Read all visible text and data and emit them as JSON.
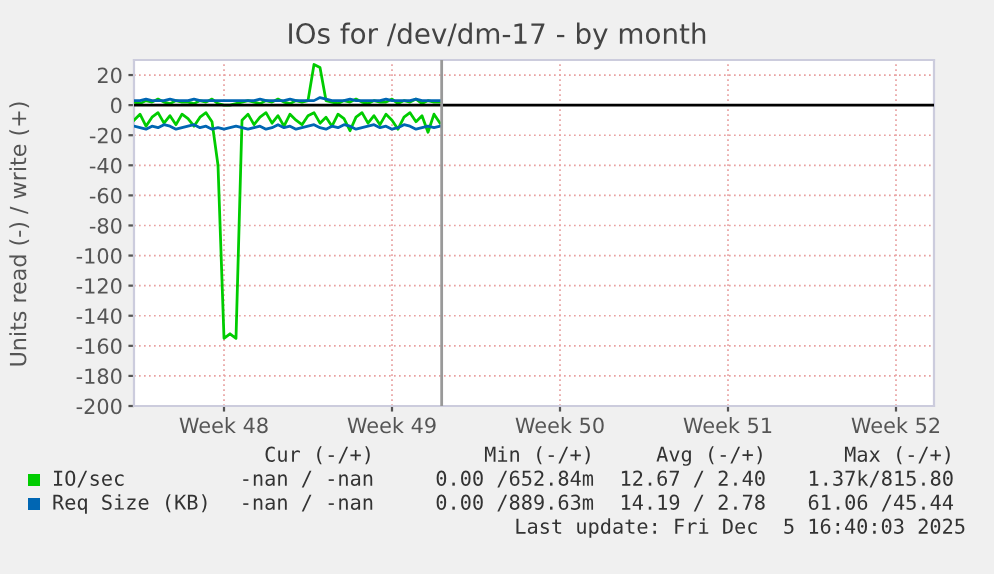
{
  "chart_data": {
    "type": "line",
    "title": "IOs for /dev/dm-17 - by month",
    "ylabel": "Units read (-) / write (+)",
    "x": [
      "2025-11-22T21:00",
      "2025-11-23T03:00",
      "2025-11-23T09:00",
      "2025-11-23T15:00",
      "2025-11-23T21:00",
      "2025-11-24T03:00",
      "2025-11-24T09:00",
      "2025-11-24T15:00",
      "2025-11-24T21:00",
      "2025-11-25T03:00",
      "2025-11-25T09:00",
      "2025-11-25T15:00",
      "2025-11-25T21:00",
      "2025-11-26T03:00",
      "2025-11-26T09:00",
      "2025-11-26T15:00",
      "2025-11-26T21:00",
      "2025-11-27T03:00",
      "2025-11-27T09:00",
      "2025-11-27T15:00",
      "2025-11-27T21:00",
      "2025-11-28T03:00",
      "2025-11-28T09:00",
      "2025-11-28T15:00",
      "2025-11-28T21:00",
      "2025-11-29T03:00",
      "2025-11-29T09:00",
      "2025-11-29T15:00",
      "2025-11-29T21:00",
      "2025-11-30T03:00",
      "2025-11-30T09:00",
      "2025-11-30T15:00",
      "2025-11-30T21:00",
      "2025-12-01T03:00",
      "2025-12-01T09:00",
      "2025-12-01T15:00",
      "2025-12-01T21:00",
      "2025-12-02T03:00",
      "2025-12-02T09:00",
      "2025-12-02T15:00",
      "2025-12-02T21:00",
      "2025-12-03T03:00",
      "2025-12-03T09:00",
      "2025-12-03T15:00",
      "2025-12-03T21:00",
      "2025-12-04T03:00",
      "2025-12-04T09:00",
      "2025-12-04T15:00",
      "2025-12-04T21:00",
      "2025-12-05T03:00",
      "2025-12-05T09:00",
      "2025-12-05T15:00"
    ],
    "series": [
      {
        "name": "IO/sec",
        "color": "#00cc00",
        "values": [
          -10,
          -6,
          -14,
          -8,
          -5,
          -12,
          -7,
          -13,
          -6,
          -9,
          -14,
          -8,
          -5,
          -11,
          -40,
          -155,
          -152,
          -155,
          -10,
          -6,
          -13,
          -8,
          -5,
          -12,
          -7,
          -14,
          -6,
          -10,
          -13,
          -7,
          -5,
          -12,
          -8,
          -14,
          -6,
          -9,
          -17,
          -8,
          -5,
          -12,
          -7,
          -13,
          -6,
          -10,
          -16,
          -8,
          -5,
          -11,
          -7,
          -18,
          -6,
          -12
        ]
      },
      {
        "color": "#00cc00",
        "values": [
          2,
          1,
          3,
          2,
          4,
          2,
          1,
          3,
          2,
          2,
          1,
          3,
          2,
          4,
          1,
          0,
          0,
          1,
          2,
          3,
          2,
          1,
          3,
          2,
          4,
          2,
          1,
          3,
          2,
          3,
          27,
          25,
          3,
          2,
          1,
          3,
          2,
          4,
          2,
          1,
          3,
          2,
          2,
          4,
          1,
          3,
          2,
          4,
          1,
          3,
          2,
          2
        ]
      },
      {
        "name": "Req Size (KB)",
        "color": "#0066b3",
        "values": [
          -14,
          -15,
          -16,
          -14,
          -15,
          -13,
          -14,
          -16,
          -15,
          -14,
          -13,
          -15,
          -14,
          -16,
          -15,
          -16,
          -15,
          -14,
          -15,
          -16,
          -15,
          -14,
          -16,
          -15,
          -13,
          -15,
          -14,
          -16,
          -15,
          -14,
          -13,
          -15,
          -16,
          -14,
          -15,
          -13,
          -14,
          -16,
          -15,
          -14,
          -13,
          -15,
          -14,
          -16,
          -15,
          -13,
          -14,
          -16,
          -15,
          -14,
          -15,
          -14
        ]
      },
      {
        "color": "#0066b3",
        "values": [
          3,
          3,
          4,
          3,
          3,
          3,
          4,
          3,
          3,
          3,
          4,
          3,
          3,
          3,
          3,
          3,
          3,
          3,
          3,
          3,
          3,
          4,
          3,
          3,
          3,
          3,
          4,
          3,
          3,
          3,
          3,
          5,
          4,
          3,
          3,
          3,
          4,
          3,
          3,
          3,
          3,
          3,
          4,
          3,
          3,
          3,
          3,
          4,
          3,
          3,
          3,
          3
        ]
      }
    ],
    "xlim": [
      "2025-11-22T21:00",
      "2025-12-26T05:00"
    ],
    "xticks": [
      {
        "value": "2025-11-26T15:00",
        "label": "Week 48"
      },
      {
        "value": "2025-12-03T15:00",
        "label": "Week 49"
      },
      {
        "value": "2025-12-10T15:00",
        "label": "Week 50"
      },
      {
        "value": "2025-12-17T15:00",
        "label": "Week 51"
      },
      {
        "value": "2025-12-24T15:00",
        "label": "Week 52"
      }
    ],
    "ylim": [
      -200,
      30
    ],
    "yticks": [
      -200,
      -180,
      -160,
      -140,
      -120,
      -100,
      -80,
      -60,
      -40,
      -20,
      0,
      20
    ],
    "ref_lines": [
      {
        "axis": "y",
        "value": 0,
        "color": "#000000"
      },
      {
        "axis": "x",
        "value": "2025-12-05T16:40",
        "color": "#999999"
      }
    ],
    "grid": true,
    "legend": "bottom",
    "annotations": [
      "Cur (-/+)",
      "Min (-/+)",
      "Avg (-/+)",
      "Max (-/+)",
      "-nan / -nan",
      "0.00 /652.84m",
      "12.67 / 2.40",
      "1.37k/815.80",
      "-nan / -nan",
      "0.00 /889.63m",
      "14.19 / 2.78",
      "61.06 /45.44",
      "Last update: Fri Dec  5 16:40:03 2025"
    ]
  }
}
